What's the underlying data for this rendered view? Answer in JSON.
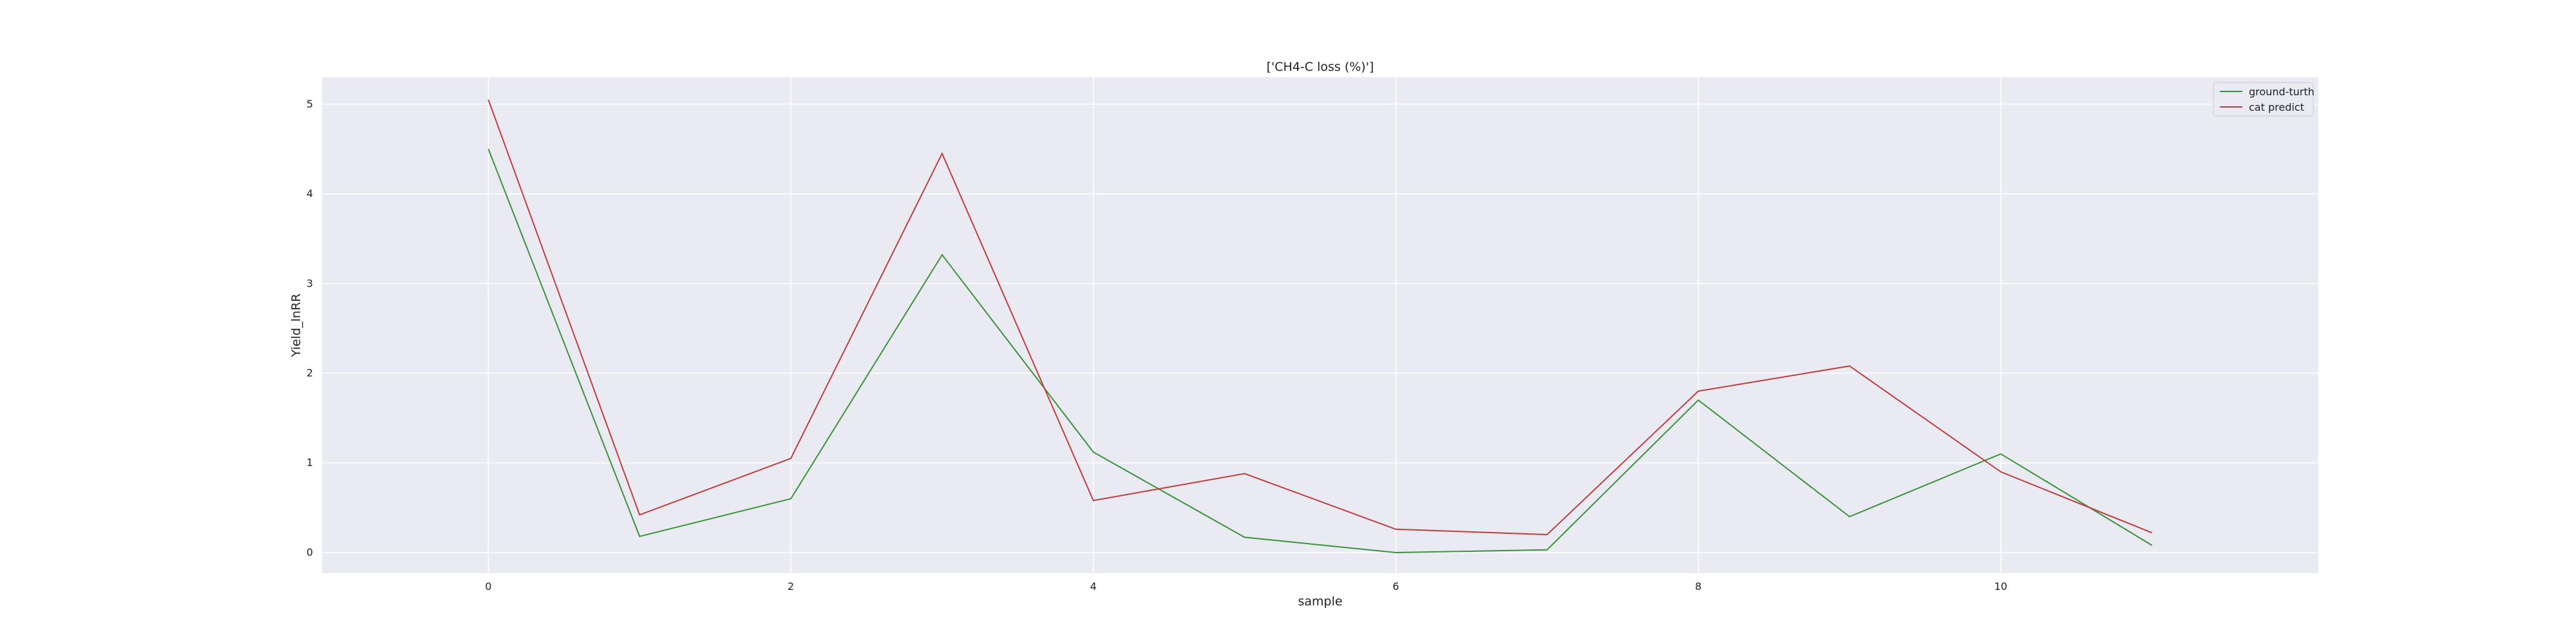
{
  "chart_data": {
    "type": "line",
    "title": "['CH4-C loss (%)']",
    "xlabel": "sample",
    "ylabel": "Yield_lnRR",
    "x": [
      0,
      1,
      2,
      3,
      4,
      5,
      6,
      7,
      8,
      9,
      10,
      11
    ],
    "xlim": [
      -1.1,
      12.1
    ],
    "ylim": [
      -0.23,
      5.3
    ],
    "xticks": [
      0,
      2,
      4,
      6,
      8,
      10
    ],
    "yticks": [
      0,
      1,
      2,
      3,
      4,
      5
    ],
    "grid": true,
    "legend_position": "top-right",
    "series": [
      {
        "name": "ground-turth",
        "color": "#3a923a",
        "values": [
          4.5,
          0.18,
          0.6,
          3.32,
          1.12,
          0.17,
          0.0,
          0.03,
          1.7,
          0.4,
          1.1,
          0.08
        ]
      },
      {
        "name": "cat predict",
        "color": "#c03d3e",
        "values": [
          5.05,
          0.42,
          1.05,
          4.45,
          0.58,
          0.88,
          0.26,
          0.2,
          1.8,
          2.08,
          0.9,
          0.22
        ]
      }
    ],
    "colors": {
      "plot_background": "#eaeaf2",
      "grid": "#ffffff"
    }
  }
}
